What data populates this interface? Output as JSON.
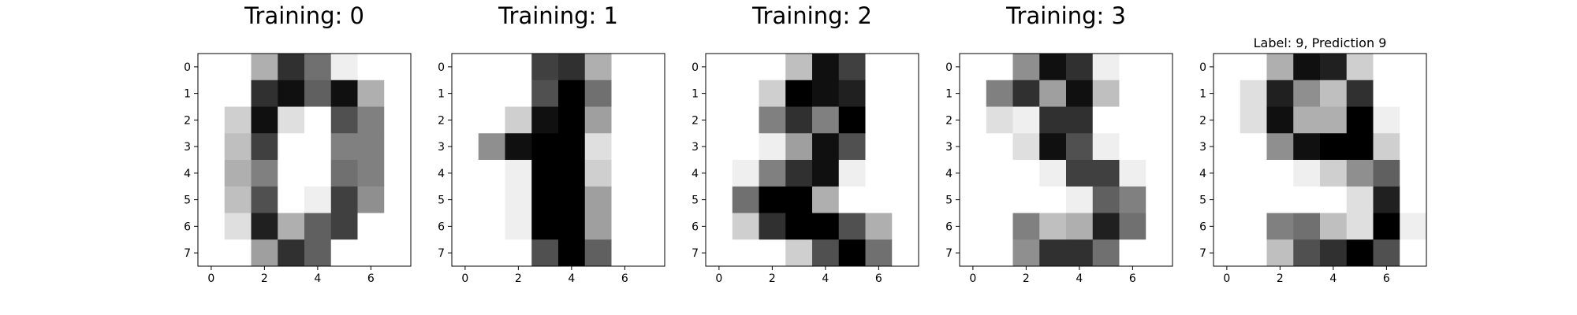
{
  "chart_data": [
    {
      "type": "heatmap",
      "title": "Training: 0",
      "colormap": "gray_r",
      "x_ticks": [
        0,
        2,
        4,
        6
      ],
      "y_ticks": [
        0,
        1,
        2,
        3,
        4,
        5,
        6,
        7
      ],
      "xlim": [
        -0.5,
        7.5
      ],
      "ylim": [
        7.5,
        -0.5
      ],
      "vmin": 0,
      "vmax": 16,
      "grid": false,
      "image": [
        [
          0,
          0,
          5,
          13,
          9,
          1,
          0,
          0
        ],
        [
          0,
          0,
          13,
          15,
          10,
          15,
          5,
          0
        ],
        [
          0,
          3,
          15,
          2,
          0,
          11,
          8,
          0
        ],
        [
          0,
          4,
          12,
          0,
          0,
          8,
          8,
          0
        ],
        [
          0,
          5,
          8,
          0,
          0,
          9,
          8,
          0
        ],
        [
          0,
          4,
          11,
          0,
          1,
          12,
          7,
          0
        ],
        [
          0,
          2,
          14,
          5,
          10,
          12,
          0,
          0
        ],
        [
          0,
          0,
          6,
          13,
          10,
          0,
          0,
          0
        ]
      ]
    },
    {
      "type": "heatmap",
      "title": "Training: 1",
      "colormap": "gray_r",
      "x_ticks": [
        0,
        2,
        4,
        6
      ],
      "y_ticks": [
        0,
        1,
        2,
        3,
        4,
        5,
        6,
        7
      ],
      "xlim": [
        -0.5,
        7.5
      ],
      "ylim": [
        7.5,
        -0.5
      ],
      "vmin": 0,
      "vmax": 16,
      "grid": false,
      "image": [
        [
          0,
          0,
          0,
          12,
          13,
          5,
          0,
          0
        ],
        [
          0,
          0,
          0,
          11,
          16,
          9,
          0,
          0
        ],
        [
          0,
          0,
          3,
          15,
          16,
          6,
          0,
          0
        ],
        [
          0,
          7,
          15,
          16,
          16,
          2,
          0,
          0
        ],
        [
          0,
          0,
          1,
          16,
          16,
          3,
          0,
          0
        ],
        [
          0,
          0,
          1,
          16,
          16,
          6,
          0,
          0
        ],
        [
          0,
          0,
          1,
          16,
          16,
          6,
          0,
          0
        ],
        [
          0,
          0,
          0,
          11,
          16,
          10,
          0,
          0
        ]
      ]
    },
    {
      "type": "heatmap",
      "title": "Training: 2",
      "colormap": "gray_r",
      "x_ticks": [
        0,
        2,
        4,
        6
      ],
      "y_ticks": [
        0,
        1,
        2,
        3,
        4,
        5,
        6,
        7
      ],
      "xlim": [
        -0.5,
        7.5
      ],
      "ylim": [
        7.5,
        -0.5
      ],
      "vmin": 0,
      "vmax": 16,
      "grid": false,
      "image": [
        [
          0,
          0,
          0,
          4,
          15,
          12,
          0,
          0
        ],
        [
          0,
          0,
          3,
          16,
          15,
          14,
          0,
          0
        ],
        [
          0,
          0,
          8,
          13,
          8,
          16,
          0,
          0
        ],
        [
          0,
          0,
          1,
          6,
          15,
          11,
          0,
          0
        ],
        [
          0,
          1,
          8,
          13,
          15,
          1,
          0,
          0
        ],
        [
          0,
          9,
          16,
          16,
          5,
          0,
          0,
          0
        ],
        [
          0,
          3,
          13,
          16,
          16,
          11,
          5,
          0
        ],
        [
          0,
          0,
          0,
          3,
          11,
          16,
          9,
          0
        ]
      ]
    },
    {
      "type": "heatmap",
      "title": "Training: 3",
      "colormap": "gray_r",
      "x_ticks": [
        0,
        2,
        4,
        6
      ],
      "y_ticks": [
        0,
        1,
        2,
        3,
        4,
        5,
        6,
        7
      ],
      "xlim": [
        -0.5,
        7.5
      ],
      "ylim": [
        7.5,
        -0.5
      ],
      "vmin": 0,
      "vmax": 16,
      "grid": false,
      "image": [
        [
          0,
          0,
          7,
          15,
          13,
          1,
          0,
          0
        ],
        [
          0,
          8,
          13,
          6,
          15,
          4,
          0,
          0
        ],
        [
          0,
          2,
          1,
          13,
          13,
          0,
          0,
          0
        ],
        [
          0,
          0,
          2,
          15,
          11,
          1,
          0,
          0
        ],
        [
          0,
          0,
          0,
          1,
          12,
          12,
          1,
          0
        ],
        [
          0,
          0,
          0,
          0,
          1,
          10,
          8,
          0
        ],
        [
          0,
          0,
          8,
          4,
          5,
          14,
          9,
          0
        ],
        [
          0,
          0,
          7,
          13,
          13,
          9,
          0,
          0
        ]
      ]
    },
    {
      "type": "heatmap",
      "title": "Label: 9, Prediction 9",
      "colormap": "gray_r",
      "x_ticks": [
        0,
        2,
        4,
        6
      ],
      "y_ticks": [
        0,
        1,
        2,
        3,
        4,
        5,
        6,
        7
      ],
      "xlim": [
        -0.5,
        7.5
      ],
      "ylim": [
        7.5,
        -0.5
      ],
      "vmin": 0,
      "vmax": 16,
      "grid": false,
      "image": [
        [
          0,
          0,
          5,
          15,
          14,
          3,
          0,
          0
        ],
        [
          0,
          2,
          14,
          7,
          4,
          13,
          0,
          0
        ],
        [
          0,
          2,
          15,
          5,
          5,
          16,
          1,
          0
        ],
        [
          0,
          0,
          7,
          15,
          16,
          16,
          3,
          0
        ],
        [
          0,
          0,
          0,
          1,
          3,
          7,
          10,
          0
        ],
        [
          0,
          0,
          0,
          0,
          0,
          2,
          14,
          0
        ],
        [
          0,
          0,
          8,
          9,
          4,
          2,
          16,
          1
        ],
        [
          0,
          0,
          4,
          11,
          13,
          16,
          11,
          0
        ]
      ]
    }
  ]
}
